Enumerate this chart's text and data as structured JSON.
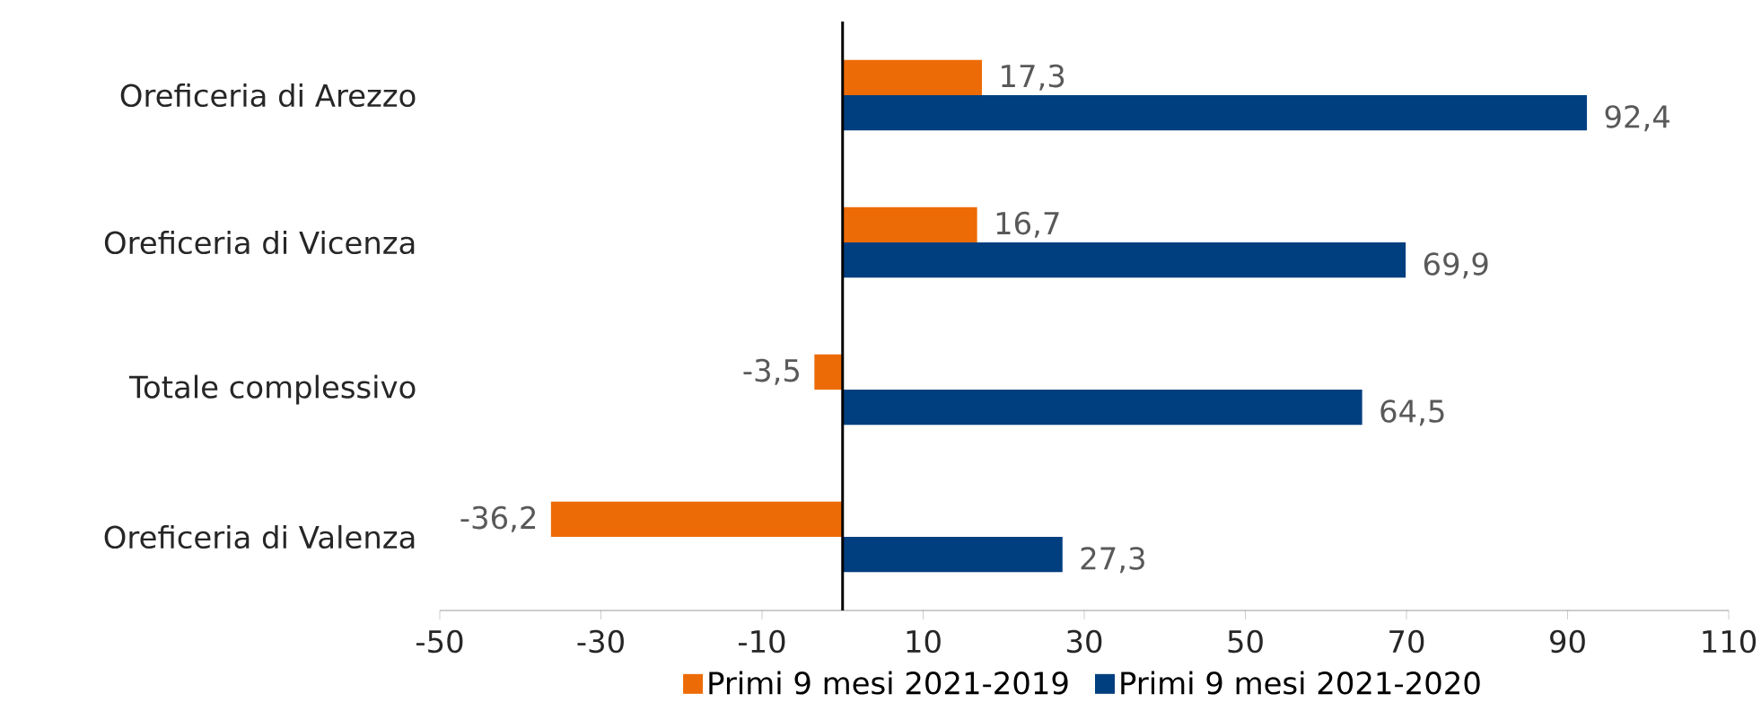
{
  "chart_data": {
    "type": "bar",
    "orientation": "horizontal",
    "categories": [
      "Oreficeria di Arezzo",
      "Oreficeria di Vicenza",
      "Totale complessivo",
      "Oreficeria di Valenza"
    ],
    "series": [
      {
        "name": "Primi 9 mesi 2021-2019",
        "color": "#ed6b06",
        "values": [
          17.3,
          16.7,
          -3.5,
          -36.2
        ],
        "value_labels": [
          "17,3",
          "16,7",
          "-3,5",
          "-36,2"
        ]
      },
      {
        "name": "Primi 9 mesi 2021-2020",
        "color": "#003f7f",
        "values": [
          92.4,
          69.9,
          64.5,
          27.3
        ],
        "value_labels": [
          "92,4",
          "69,9",
          "64,5",
          "27,3"
        ]
      }
    ],
    "xlim": [
      -50,
      110
    ],
    "xticks": [
      -50,
      -30,
      -10,
      10,
      30,
      50,
      70,
      90,
      110
    ],
    "grid": false,
    "legend": "bottom"
  }
}
